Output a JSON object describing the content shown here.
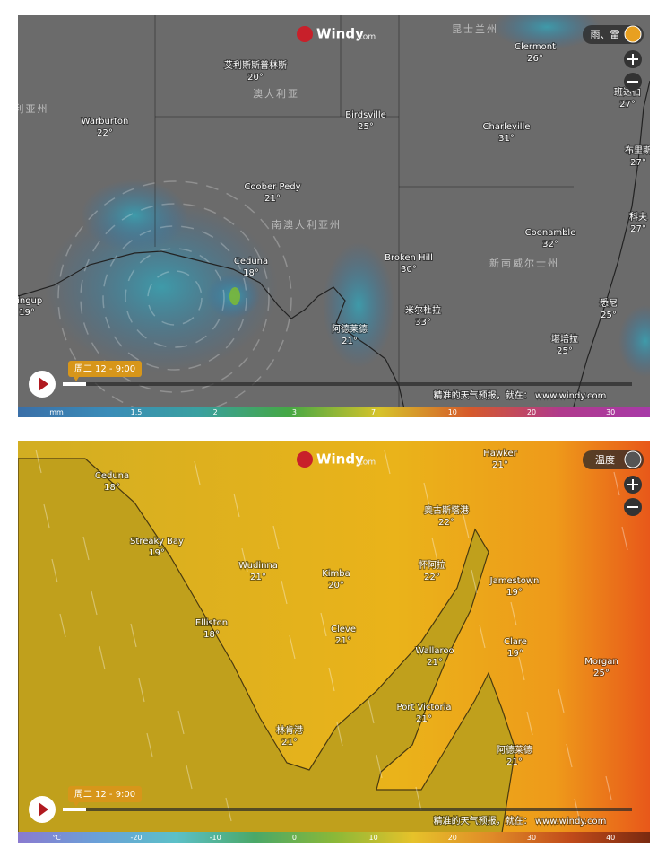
{
  "panels": [
    {
      "logo": {
        "brand": "Windy",
        "suffix": ".com"
      },
      "layer": "雨、雷",
      "regions": [
        "昆士兰州",
        "澳大利亚",
        "南澳大利亚州",
        "新南威尔士州",
        "利亚州"
      ],
      "cities": [
        {
          "name": "艾利斯斯普林斯",
          "temp": "20°"
        },
        {
          "name": "Clermont",
          "temp": "26°"
        },
        {
          "name": "Warburton",
          "temp": "22°"
        },
        {
          "name": "Birdsville",
          "temp": "25°"
        },
        {
          "name": "Charleville",
          "temp": "31°"
        },
        {
          "name": "班达伯",
          "temp": "27°"
        },
        {
          "name": "布里斯",
          "temp": "27°"
        },
        {
          "name": "Coober Pedy",
          "temp": "21°"
        },
        {
          "name": "科夫",
          "temp": "27°"
        },
        {
          "name": "Coonamble",
          "temp": "32°"
        },
        {
          "name": "Ceduna",
          "temp": "18°"
        },
        {
          "name": "Broken Hill",
          "temp": "30°"
        },
        {
          "name": "dingup",
          "temp": "19°"
        },
        {
          "name": "米尔杜拉",
          "temp": "33°"
        },
        {
          "name": "悉尼",
          "temp": "25°"
        },
        {
          "name": "阿德莱德",
          "temp": "21°"
        },
        {
          "name": "堪培拉",
          "temp": "25°"
        }
      ],
      "timeline": "周二 12 - 9:00",
      "watermark": "精准的天气预报，就在：  www.windy.com",
      "scale": {
        "unit": "mm",
        "ticks": [
          1.5,
          2,
          3,
          7,
          10,
          20,
          30
        ]
      }
    },
    {
      "logo": {
        "brand": "Windy",
        "suffix": ".com"
      },
      "layer": "温度",
      "regions": [],
      "cities": [
        {
          "name": "Ceduna",
          "temp": "18°"
        },
        {
          "name": "Hawker",
          "temp": "21°"
        },
        {
          "name": "奥古斯塔港",
          "temp": "22°"
        },
        {
          "name": "Streaky Bay",
          "temp": "19°"
        },
        {
          "name": "Wudinna",
          "temp": "21°"
        },
        {
          "name": "Kimba",
          "temp": "20°"
        },
        {
          "name": "怀阿拉",
          "temp": "22°"
        },
        {
          "name": "Jamestown",
          "temp": "19°"
        },
        {
          "name": "Elliston",
          "temp": "18°"
        },
        {
          "name": "Cleve",
          "temp": "21°"
        },
        {
          "name": "Clare",
          "temp": "19°"
        },
        {
          "name": "Wallaroo",
          "temp": "21°"
        },
        {
          "name": "Morgan",
          "temp": "25°"
        },
        {
          "name": "Port Victoria",
          "temp": "21°"
        },
        {
          "name": "林肯港",
          "temp": "21°"
        },
        {
          "name": "阿德莱德",
          "temp": "21°"
        }
      ],
      "timeline": "周二 12 - 9:00",
      "watermark": "精准的天气预报，就在：  www.windy.com",
      "scale": {
        "unit": "°C",
        "ticks": [
          -20,
          -10,
          0,
          10,
          20,
          30,
          40
        ]
      }
    }
  ]
}
